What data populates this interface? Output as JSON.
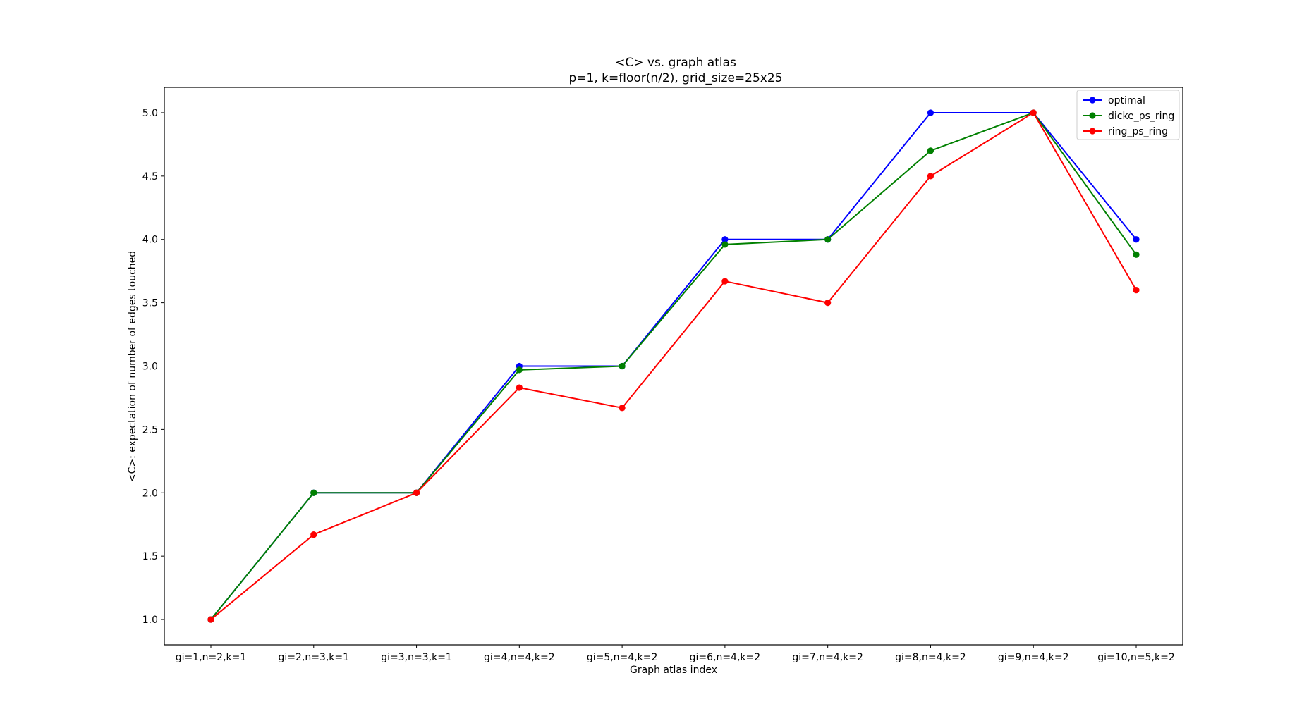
{
  "chart_data": {
    "type": "line",
    "title": "<C> vs. graph atlas",
    "subtitle": "p=1, k=floor(n/2), grid_size=25x25",
    "xlabel": "Graph atlas index",
    "ylabel": "<C>: expectation of number of edges touched",
    "categories": [
      "gi=1,n=2,k=1",
      "gi=2,n=3,k=1",
      "gi=3,n=3,k=1",
      "gi=4,n=4,k=2",
      "gi=5,n=4,k=2",
      "gi=6,n=4,k=2",
      "gi=7,n=4,k=2",
      "gi=8,n=4,k=2",
      "gi=9,n=4,k=2",
      "gi=10,n=5,k=2"
    ],
    "ylim": [
      0.8,
      5.2
    ],
    "yticks": [
      1.0,
      1.5,
      2.0,
      2.5,
      3.0,
      3.5,
      4.0,
      4.5,
      5.0
    ],
    "ytick_labels": [
      "1.0",
      "1.5",
      "2.0",
      "2.5",
      "3.0",
      "3.5",
      "4.0",
      "4.5",
      "5.0"
    ],
    "grid": false,
    "legend_position": "top-right",
    "series": [
      {
        "name": "optimal",
        "color": "#0000ff",
        "values": [
          1.0,
          2.0,
          2.0,
          3.0,
          3.0,
          4.0,
          4.0,
          5.0,
          5.0,
          4.0
        ]
      },
      {
        "name": "dicke_ps_ring",
        "color": "#008000",
        "values": [
          1.0,
          2.0,
          2.0,
          2.97,
          3.0,
          3.96,
          4.0,
          4.7,
          5.0,
          3.88
        ]
      },
      {
        "name": "ring_ps_ring",
        "color": "#ff0000",
        "values": [
          1.0,
          1.67,
          2.0,
          2.83,
          2.67,
          3.67,
          3.5,
          4.5,
          5.0,
          3.6
        ]
      }
    ]
  }
}
